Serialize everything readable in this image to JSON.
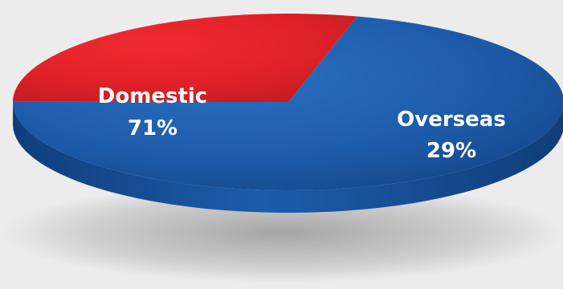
{
  "chart_data": {
    "type": "pie",
    "style": "3d",
    "categories": [
      "Domestic",
      "Overseas"
    ],
    "values": [
      71,
      29
    ],
    "value_unit": "%",
    "labels": [
      "Domestic",
      "Overseas"
    ],
    "value_labels": [
      "71%",
      "29%"
    ],
    "colors": [
      "#1a5aa8",
      "#e02228"
    ],
    "legend": "none"
  }
}
